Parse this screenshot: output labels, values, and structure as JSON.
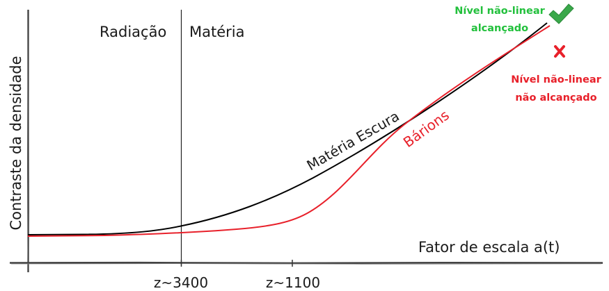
{
  "diagram": {
    "y_axis_label": "Contraste da densidade",
    "x_axis_label": "Fator de escala a(t)",
    "era_radiation": "Radiação",
    "era_matter": "Matéria",
    "tick_equality": "z~3400",
    "tick_recombination": "z~1100",
    "curve_dark_matter": "Matéria Escura",
    "curve_baryons": "Bárions",
    "status_reached_line1": "Nível não-linear",
    "status_reached_line2": "alcançado",
    "status_not_reached_line1": "Nível não-linear",
    "status_not_reached_line2": "não alcançado",
    "check_icon": "check-icon",
    "cross_icon": "cross-icon"
  },
  "colors": {
    "dark_matter": "#000000",
    "baryons": "#e8202a",
    "reached": "#22c03c",
    "not_reached": "#e8202a",
    "axes": "#333333"
  }
}
